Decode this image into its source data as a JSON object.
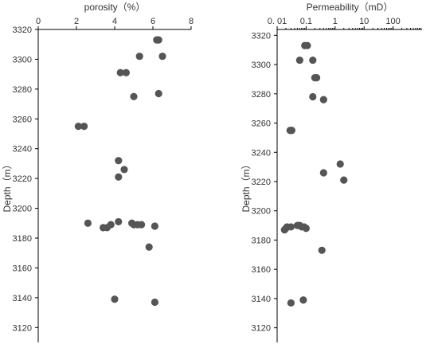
{
  "chart_data": [
    {
      "type": "scatter",
      "xlabel": "porosity（%）",
      "ylabel": "Depth（m）",
      "xlim": [
        0,
        8
      ],
      "ylim": [
        3110,
        3320
      ],
      "x_ticks": [
        0,
        2,
        4,
        6,
        8
      ],
      "y_ticks": [
        3120,
        3140,
        3160,
        3180,
        3200,
        3220,
        3240,
        3260,
        3280,
        3300,
        3320
      ],
      "x_axis_position": "top",
      "y_direction": "increasing upward",
      "grid": false,
      "marker_color": "#555555",
      "points": [
        {
          "x": 6.3,
          "y": 3313
        },
        {
          "x": 6.2,
          "y": 3313
        },
        {
          "x": 5.3,
          "y": 3302
        },
        {
          "x": 6.5,
          "y": 3302
        },
        {
          "x": 4.3,
          "y": 3291
        },
        {
          "x": 4.6,
          "y": 3291
        },
        {
          "x": 5.0,
          "y": 3275
        },
        {
          "x": 6.3,
          "y": 3277
        },
        {
          "x": 2.1,
          "y": 3255
        },
        {
          "x": 2.4,
          "y": 3255
        },
        {
          "x": 4.2,
          "y": 3232
        },
        {
          "x": 4.5,
          "y": 3226
        },
        {
          "x": 4.2,
          "y": 3221
        },
        {
          "x": 2.6,
          "y": 3190
        },
        {
          "x": 3.4,
          "y": 3187
        },
        {
          "x": 3.6,
          "y": 3187
        },
        {
          "x": 3.8,
          "y": 3189
        },
        {
          "x": 4.2,
          "y": 3191
        },
        {
          "x": 4.9,
          "y": 3190
        },
        {
          "x": 5.0,
          "y": 3189
        },
        {
          "x": 5.2,
          "y": 3189
        },
        {
          "x": 5.4,
          "y": 3189
        },
        {
          "x": 6.1,
          "y": 3188
        },
        {
          "x": 5.8,
          "y": 3174
        },
        {
          "x": 4.0,
          "y": 3139
        },
        {
          "x": 6.1,
          "y": 3137
        }
      ]
    },
    {
      "type": "scatter",
      "xlabel": "Permeability（mD）",
      "ylabel": "Depth（m）",
      "xscale": "log",
      "xlim": [
        0.01,
        1000
      ],
      "ylim": [
        3110,
        3324
      ],
      "x_ticks": [
        0.01,
        0.1,
        1,
        10,
        100
      ],
      "x_tick_labels": [
        "0. 01",
        "0.1",
        "1",
        "10",
        "100"
      ],
      "y_ticks": [
        3120,
        3140,
        3160,
        3180,
        3200,
        3220,
        3240,
        3260,
        3280,
        3300,
        3320
      ],
      "x_axis_position": "top",
      "y_direction": "increasing upward",
      "grid": false,
      "marker_color": "#555555",
      "points": [
        {
          "x": 0.09,
          "y": 3313
        },
        {
          "x": 0.11,
          "y": 3313
        },
        {
          "x": 0.06,
          "y": 3303
        },
        {
          "x": 0.17,
          "y": 3303
        },
        {
          "x": 0.2,
          "y": 3291
        },
        {
          "x": 0.23,
          "y": 3291
        },
        {
          "x": 0.17,
          "y": 3278
        },
        {
          "x": 0.4,
          "y": 3276
        },
        {
          "x": 0.028,
          "y": 3255
        },
        {
          "x": 0.032,
          "y": 3255
        },
        {
          "x": 1.5,
          "y": 3232
        },
        {
          "x": 0.4,
          "y": 3226
        },
        {
          "x": 2.0,
          "y": 3221
        },
        {
          "x": 0.018,
          "y": 3187
        },
        {
          "x": 0.02,
          "y": 3188
        },
        {
          "x": 0.022,
          "y": 3189
        },
        {
          "x": 0.03,
          "y": 3189
        },
        {
          "x": 0.05,
          "y": 3190
        },
        {
          "x": 0.06,
          "y": 3190
        },
        {
          "x": 0.07,
          "y": 3189
        },
        {
          "x": 0.085,
          "y": 3189
        },
        {
          "x": 0.1,
          "y": 3188
        },
        {
          "x": 0.35,
          "y": 3173
        },
        {
          "x": 0.08,
          "y": 3139
        },
        {
          "x": 0.03,
          "y": 3137
        }
      ]
    }
  ]
}
